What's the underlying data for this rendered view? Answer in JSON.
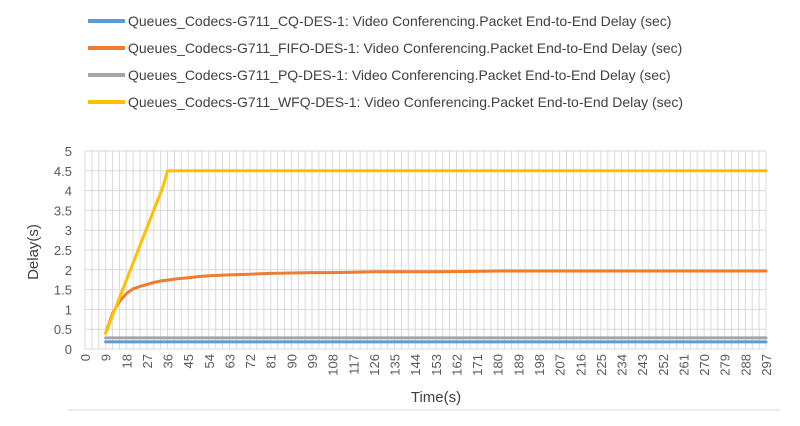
{
  "chart_data": {
    "type": "line",
    "xlabel": "Time(s)",
    "ylabel": "Delay(s)",
    "ylim": [
      0,
      5
    ],
    "yticks": [
      "0",
      "0.5",
      "1",
      "1.5",
      "2",
      "2.5",
      "3",
      "3.5",
      "4",
      "4.5",
      "5"
    ],
    "xticks": [
      "0",
      "9",
      "18",
      "27",
      "36",
      "45",
      "54",
      "63",
      "72",
      "81",
      "90",
      "99",
      "108",
      "117",
      "126",
      "135",
      "144",
      "153",
      "162",
      "171",
      "180",
      "189",
      "198",
      "207",
      "216",
      "225",
      "234",
      "243",
      "252",
      "261",
      "270",
      "279",
      "288",
      "297"
    ],
    "xlim": [
      0,
      297
    ],
    "grid": true,
    "legend_position": "top",
    "series": [
      {
        "name": "Queues_Codecs-G711_CQ-DES-1: Video Conferencing.Packet End-to-End Delay (sec)",
        "color": "#5B9BD5",
        "x": [
          9,
          297
        ],
        "y": [
          0.18,
          0.18
        ]
      },
      {
        "name": "Queues_Codecs-G711_FIFO-DES-1: Video Conferencing.Packet End-to-End Delay (sec)",
        "color": "#ED7D31",
        "x": [
          9,
          12,
          15,
          18,
          21,
          24,
          27,
          30,
          33,
          36,
          40,
          45,
          50,
          54,
          63,
          72,
          81,
          90,
          99,
          108,
          117,
          126,
          135,
          153,
          171,
          180,
          207,
          243,
          270,
          297
        ],
        "y": [
          0.4,
          0.9,
          1.2,
          1.4,
          1.52,
          1.58,
          1.63,
          1.68,
          1.72,
          1.74,
          1.77,
          1.8,
          1.83,
          1.85,
          1.87,
          1.89,
          1.91,
          1.92,
          1.93,
          1.93,
          1.94,
          1.95,
          1.95,
          1.95,
          1.96,
          1.97,
          1.97,
          1.97,
          1.97,
          1.97
        ]
      },
      {
        "name": "Queues_Codecs-G711_PQ-DES-1: Video Conferencing.Packet End-to-End Delay (sec)",
        "color": "#A5A5A5",
        "x": [
          9,
          297
        ],
        "y": [
          0.28,
          0.28
        ]
      },
      {
        "name": "Queues_Codecs-G711_WFQ-DES-1: Video Conferencing.Packet End-to-End Delay (sec)",
        "color": "#FFC000",
        "x": [
          9,
          34,
          36,
          297
        ],
        "y": [
          0.4,
          4.1,
          4.5,
          4.5
        ]
      }
    ]
  }
}
